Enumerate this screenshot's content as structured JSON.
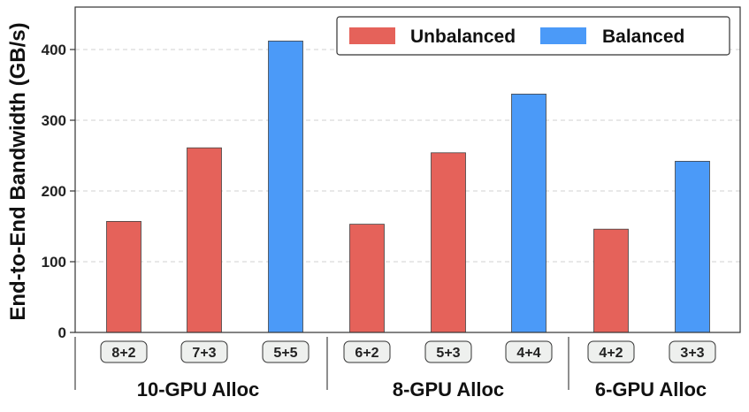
{
  "chart_data": {
    "type": "bar",
    "ylabel": "End-to-End Bandwidth (GB/s)",
    "ylim": [
      0,
      460
    ],
    "yticks": [
      0,
      100,
      200,
      300,
      400
    ],
    "grid": "y-dashed",
    "legend_position": "top-right",
    "legend": [
      {
        "name": "Unbalanced",
        "color": "#e5625a"
      },
      {
        "name": "Balanced",
        "color": "#4b9af8"
      }
    ],
    "categories": [
      "8+2",
      "7+3",
      "5+5",
      "6+2",
      "5+3",
      "4+4",
      "4+2",
      "3+3"
    ],
    "values": [
      157,
      261,
      412,
      153,
      254,
      337,
      146,
      242
    ],
    "kinds": [
      "Unbalanced",
      "Unbalanced",
      "Balanced",
      "Unbalanced",
      "Unbalanced",
      "Balanced",
      "Unbalanced",
      "Balanced"
    ],
    "groups": [
      {
        "label": "10-GPU Alloc",
        "members": [
          "8+2",
          "7+3",
          "5+5"
        ]
      },
      {
        "label": "8-GPU Alloc",
        "members": [
          "6+2",
          "5+3",
          "4+4"
        ]
      },
      {
        "label": "6-GPU Alloc",
        "members": [
          "4+2",
          "3+3"
        ]
      }
    ]
  }
}
